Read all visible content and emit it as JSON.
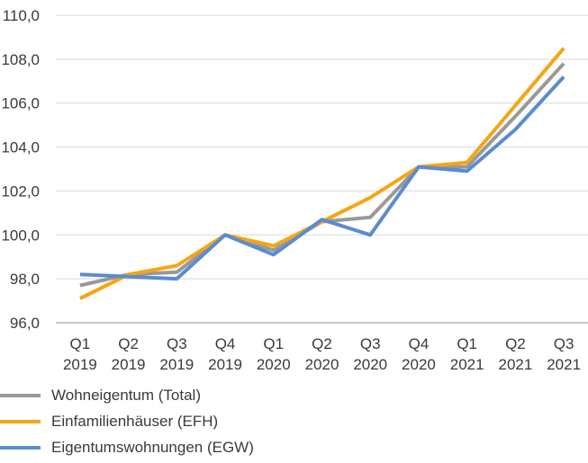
{
  "chart_data": {
    "type": "line",
    "categories": [
      [
        "Q1",
        "2019"
      ],
      [
        "Q2",
        "2019"
      ],
      [
        "Q3",
        "2019"
      ],
      [
        "Q4",
        "2019"
      ],
      [
        "Q1",
        "2020"
      ],
      [
        "Q2",
        "2020"
      ],
      [
        "Q3",
        "2020"
      ],
      [
        "Q4",
        "2020"
      ],
      [
        "Q1",
        "2021"
      ],
      [
        "Q2",
        "2021"
      ],
      [
        "Q3",
        "2021"
      ]
    ],
    "y_ticks": [
      "96,0",
      "98,0",
      "100,0",
      "102,0",
      "104,0",
      "106,0",
      "108,0",
      "110,0"
    ],
    "ylim": [
      96,
      110
    ],
    "grid": true,
    "legend_position": "bottom-left",
    "series": [
      {
        "name": "Wohneigentum (Total)",
        "color": "#999999",
        "values": [
          97.7,
          98.2,
          98.3,
          100.0,
          99.3,
          100.6,
          100.8,
          103.1,
          103.1,
          105.4,
          107.8
        ]
      },
      {
        "name": "Einfamilienhäuser (EFH)",
        "color": "#f5a515",
        "values": [
          97.1,
          98.2,
          98.6,
          100.0,
          99.5,
          100.6,
          101.7,
          103.1,
          103.3,
          105.9,
          108.5
        ]
      },
      {
        "name": "Eigentumswohnungen (EGW)",
        "color": "#5b8ccf",
        "values": [
          98.2,
          98.1,
          98.0,
          100.0,
          99.1,
          100.7,
          100.0,
          103.1,
          102.9,
          104.8,
          107.2
        ]
      }
    ]
  }
}
